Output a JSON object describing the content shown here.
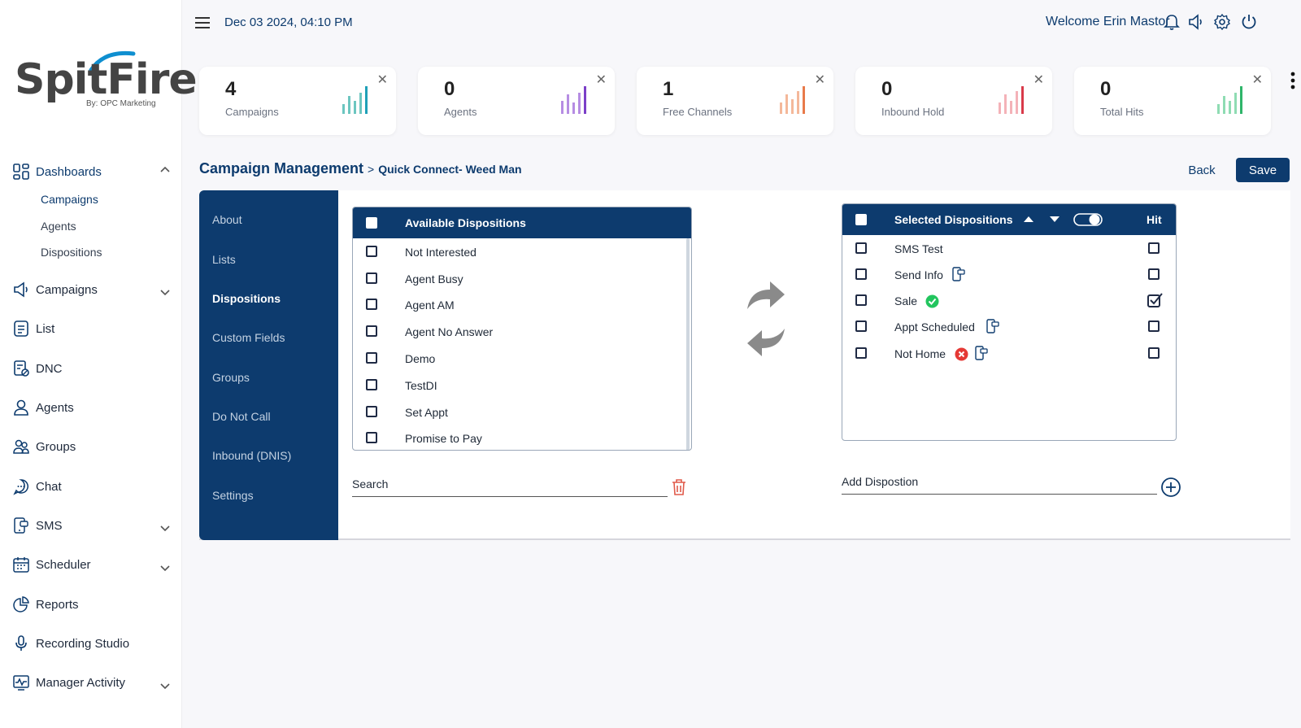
{
  "brand": {
    "name": "SpitFire",
    "tagline": "By: OPC Marketing"
  },
  "topbar": {
    "datetime": "Dec 03 2024, 04:10 PM",
    "welcome": "Welcome Erin Mastor"
  },
  "sidebar": {
    "dashboards": "Dashboards",
    "dashboard_subs": [
      "Campaigns",
      "Agents",
      "Dispositions"
    ],
    "items": [
      "Campaigns",
      "List",
      "DNC",
      "Agents",
      "Groups",
      "Chat",
      "SMS",
      "Scheduler",
      "Reports",
      "Recording Studio",
      "Manager Activity"
    ]
  },
  "stats": [
    {
      "value": "4",
      "label": "Campaigns",
      "color": "#6cc6c0"
    },
    {
      "value": "0",
      "label": "Agents",
      "color": "#a46bd6"
    },
    {
      "value": "1",
      "label": "Free Channels",
      "color": "#f0a07a"
    },
    {
      "value": "0",
      "label": "Inbound Hold",
      "color": "#e35d6a"
    },
    {
      "value": "0",
      "label": "Total Hits",
      "color": "#4cc38a"
    }
  ],
  "breadcrumb": {
    "main": "Campaign Management",
    "sep": ">",
    "sub": "Quick Connect- Weed Man"
  },
  "actions": {
    "back": "Back",
    "save": "Save"
  },
  "tabs": [
    "About",
    "Lists",
    "Dispositions",
    "Custom Fields",
    "Groups",
    "Do Not Call",
    "Inbound (DNIS)",
    "Settings"
  ],
  "available": {
    "header": "Available Dispositions",
    "items": [
      "Not Interested",
      "Agent Busy",
      "Agent AM",
      "Agent No Answer",
      "Demo",
      "TestDI",
      "Set Appt",
      "Promise to Pay"
    ],
    "search_placeholder": "Search"
  },
  "selected": {
    "header": "Selected Dispositions",
    "hit_label": "Hit",
    "items": [
      {
        "name": "SMS Test",
        "hit": false
      },
      {
        "name": "Send Info",
        "hit": false
      },
      {
        "name": "Sale",
        "hit": true
      },
      {
        "name": "Appt Scheduled",
        "hit": false
      },
      {
        "name": "Not Home",
        "hit": false
      }
    ],
    "add_placeholder": "Add Dispostion"
  },
  "colors": {
    "primary": "#0d3b6e",
    "success": "#22c55e",
    "danger": "#e53935"
  }
}
